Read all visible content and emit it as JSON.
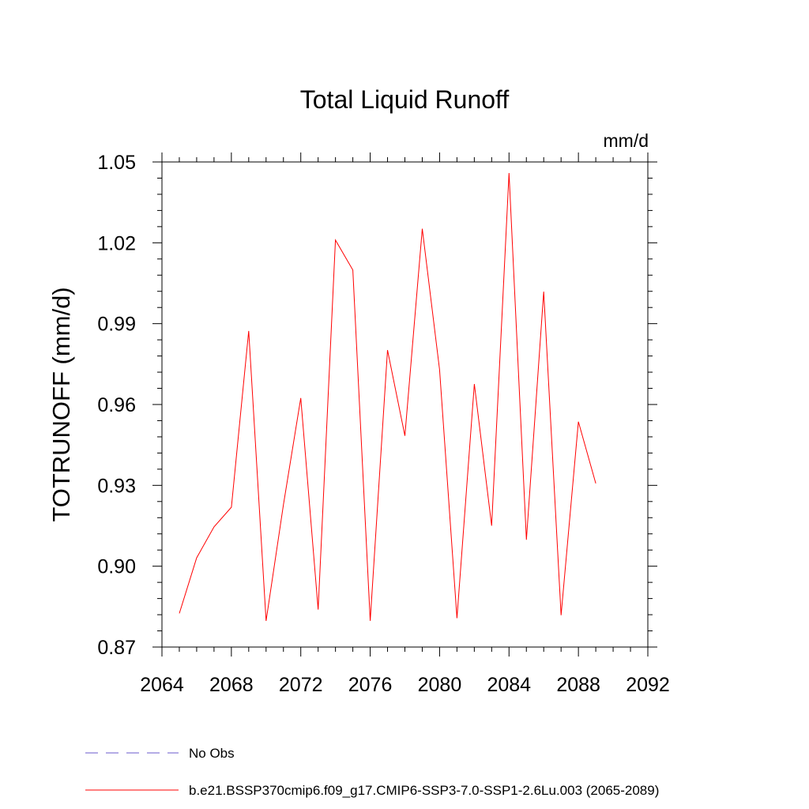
{
  "chart_data": {
    "type": "line",
    "title": "Total Liquid Runoff",
    "units_label": "mm/d",
    "ylabel": "TOTRUNOFF  (mm/d)",
    "xlabel": "",
    "xlim": [
      2064,
      2092
    ],
    "ylim": [
      0.87,
      1.05
    ],
    "x_ticks": [
      "2064",
      "2068",
      "2072",
      "2076",
      "2080",
      "2084",
      "2088",
      "2092"
    ],
    "y_ticks": [
      "0.87",
      "0.90",
      "0.93",
      "0.96",
      "0.99",
      "1.02",
      "1.05"
    ],
    "x": [
      2065,
      2066,
      2067,
      2068,
      2069,
      2070,
      2071,
      2072,
      2073,
      2074,
      2075,
      2076,
      2077,
      2078,
      2079,
      2080,
      2081,
      2082,
      2083,
      2084,
      2085,
      2086,
      2087,
      2088,
      2089
    ],
    "series": [
      {
        "name": "b.e21.BSSP370cmip6.f09_g17.CMIP6-SSP3-7.0-SSP1-2.6Lu.003 (2065-2089)",
        "color": "#ff0000",
        "dash": "solid",
        "values": [
          0.8825,
          0.9031,
          0.9146,
          0.9219,
          0.9873,
          0.8797,
          0.9229,
          0.9624,
          0.8839,
          1.021,
          1.0099,
          0.8797,
          0.9802,
          0.9484,
          1.0252,
          0.9729,
          0.8807,
          0.9676,
          0.915,
          1.0459,
          0.9098,
          1.0019,
          0.8818,
          0.9536,
          0.9307
        ]
      }
    ],
    "legend": [
      {
        "label": "No Obs",
        "color": "#6a5acd",
        "dash": "dashed"
      },
      {
        "label": "b.e21.BSSP370cmip6.f09_g17.CMIP6-SSP3-7.0-SSP1-2.6Lu.003 (2065-2089)",
        "color": "#ff0000",
        "dash": "solid"
      }
    ],
    "legend_position": "bottom-left",
    "grid": false
  }
}
